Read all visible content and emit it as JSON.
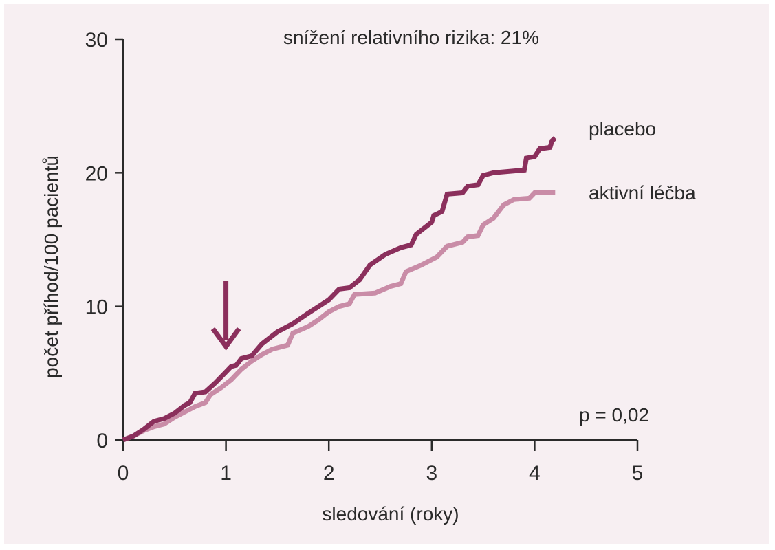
{
  "chart_data": {
    "type": "line",
    "annotation": "snížení relativního rizika: 21%",
    "pvalue": "p = 0,02",
    "xlabel": "sledování (roky)",
    "ylabel": "počet příhod/100 pacientů",
    "xlim": [
      0,
      5
    ],
    "ylim": [
      0,
      30
    ],
    "x_ticks": [
      "0",
      "1",
      "2",
      "3",
      "4",
      "5"
    ],
    "y_ticks": [
      "0",
      "10",
      "20",
      "30"
    ],
    "grid": false,
    "legend": "labels at right end of lines",
    "marker": {
      "type": "arrow-down",
      "x": 1
    },
    "colors": {
      "placebo": "#8b2f5c",
      "active": "#c98ca7",
      "axis": "#2a2a2a",
      "background": "#f7eff2"
    },
    "series": [
      {
        "name": "placebo",
        "values": [
          [
            0,
            0
          ],
          [
            0.1,
            0.3
          ],
          [
            0.2,
            0.8
          ],
          [
            0.3,
            1.4
          ],
          [
            0.4,
            1.6
          ],
          [
            0.5,
            2.0
          ],
          [
            0.6,
            2.6
          ],
          [
            0.65,
            2.8
          ],
          [
            0.7,
            3.5
          ],
          [
            0.8,
            3.6
          ],
          [
            0.9,
            4.3
          ],
          [
            1.0,
            5.1
          ],
          [
            1.05,
            5.5
          ],
          [
            1.1,
            5.6
          ],
          [
            1.15,
            6.1
          ],
          [
            1.25,
            6.3
          ],
          [
            1.35,
            7.2
          ],
          [
            1.5,
            8.1
          ],
          [
            1.65,
            8.7
          ],
          [
            1.8,
            9.5
          ],
          [
            2.0,
            10.5
          ],
          [
            2.1,
            11.3
          ],
          [
            2.2,
            11.4
          ],
          [
            2.3,
            12.0
          ],
          [
            2.4,
            13.1
          ],
          [
            2.55,
            13.9
          ],
          [
            2.7,
            14.4
          ],
          [
            2.8,
            14.6
          ],
          [
            2.85,
            15.4
          ],
          [
            3.0,
            16.3
          ],
          [
            3.02,
            16.8
          ],
          [
            3.1,
            17.1
          ],
          [
            3.15,
            18.4
          ],
          [
            3.3,
            18.5
          ],
          [
            3.35,
            19.0
          ],
          [
            3.45,
            19.1
          ],
          [
            3.5,
            19.8
          ],
          [
            3.6,
            20.0
          ],
          [
            3.9,
            20.2
          ],
          [
            3.92,
            21.1
          ],
          [
            4.0,
            21.2
          ],
          [
            4.05,
            21.8
          ],
          [
            4.15,
            21.9
          ],
          [
            4.17,
            22.4
          ],
          [
            4.2,
            22.6
          ]
        ]
      },
      {
        "name": "aktivní léčba",
        "values": [
          [
            0,
            0
          ],
          [
            0.1,
            0.3
          ],
          [
            0.2,
            0.7
          ],
          [
            0.3,
            1.0
          ],
          [
            0.4,
            1.2
          ],
          [
            0.5,
            1.7
          ],
          [
            0.6,
            2.1
          ],
          [
            0.7,
            2.5
          ],
          [
            0.8,
            2.8
          ],
          [
            0.85,
            3.4
          ],
          [
            0.95,
            3.9
          ],
          [
            1.05,
            4.5
          ],
          [
            1.15,
            5.3
          ],
          [
            1.25,
            5.9
          ],
          [
            1.35,
            6.4
          ],
          [
            1.45,
            6.8
          ],
          [
            1.6,
            7.1
          ],
          [
            1.65,
            8.0
          ],
          [
            1.8,
            8.5
          ],
          [
            1.9,
            9.0
          ],
          [
            2.0,
            9.6
          ],
          [
            2.1,
            10.0
          ],
          [
            2.2,
            10.2
          ],
          [
            2.25,
            10.9
          ],
          [
            2.45,
            11.0
          ],
          [
            2.6,
            11.5
          ],
          [
            2.7,
            11.7
          ],
          [
            2.75,
            12.6
          ],
          [
            2.9,
            13.1
          ],
          [
            3.05,
            13.7
          ],
          [
            3.15,
            14.5
          ],
          [
            3.3,
            14.8
          ],
          [
            3.35,
            15.2
          ],
          [
            3.45,
            15.3
          ],
          [
            3.5,
            16.1
          ],
          [
            3.6,
            16.6
          ],
          [
            3.7,
            17.6
          ],
          [
            3.8,
            18.0
          ],
          [
            3.95,
            18.1
          ],
          [
            4.0,
            18.5
          ],
          [
            4.2,
            18.5
          ]
        ]
      }
    ]
  }
}
